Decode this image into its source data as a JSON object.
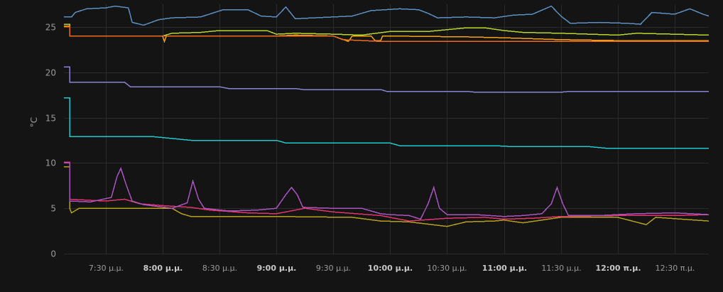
{
  "chart_data": {
    "type": "line",
    "ylabel": "°C",
    "ylim": [
      0,
      27.5
    ],
    "yticks": [
      0,
      5,
      10,
      15,
      20,
      25
    ],
    "x_range": [
      "19:08",
      "24:48"
    ],
    "xticks": [
      {
        "t": "19:30",
        "label": "7:30 μ.μ.",
        "bold": false
      },
      {
        "t": "20:00",
        "label": "8:00 μ.μ.",
        "bold": true
      },
      {
        "t": "20:30",
        "label": "8:30 μ.μ.",
        "bold": false
      },
      {
        "t": "21:00",
        "label": "9:00 μ.μ.",
        "bold": true
      },
      {
        "t": "21:30",
        "label": "9:30 μ.μ.",
        "bold": false
      },
      {
        "t": "22:00",
        "label": "10:00 μ.μ.",
        "bold": true
      },
      {
        "t": "22:30",
        "label": "10:30 μ.μ.",
        "bold": false
      },
      {
        "t": "23:00",
        "label": "11:00 μ.μ.",
        "bold": true
      },
      {
        "t": "23:30",
        "label": "11:30 μ.μ.",
        "bold": false
      },
      {
        "t": "24:00",
        "label": "12:00 π.μ.",
        "bold": true
      },
      {
        "t": "24:30",
        "label": "12:30 π.μ.",
        "bold": false
      }
    ],
    "grid": true,
    "series": [
      {
        "color": "#5b8fc2",
        "points": [
          [
            "19:08",
            26.1
          ],
          [
            "19:12",
            26.1
          ],
          [
            "19:14",
            26.6
          ],
          [
            "19:20",
            27.0
          ],
          [
            "19:30",
            27.1
          ],
          [
            "19:35",
            27.3
          ],
          [
            "19:42",
            27.1
          ],
          [
            "19:44",
            25.5
          ],
          [
            "19:50",
            25.2
          ],
          [
            "19:58",
            25.8
          ],
          [
            "20:05",
            26.0
          ],
          [
            "20:20",
            26.1
          ],
          [
            "20:26",
            26.5
          ],
          [
            "20:32",
            26.9
          ],
          [
            "20:45",
            26.9
          ],
          [
            "20:52",
            26.2
          ],
          [
            "21:00",
            26.1
          ],
          [
            "21:05",
            27.2
          ],
          [
            "21:10",
            25.9
          ],
          [
            "21:20",
            26.0
          ],
          [
            "21:40",
            26.2
          ],
          [
            "21:50",
            26.8
          ],
          [
            "22:05",
            27.0
          ],
          [
            "22:15",
            26.9
          ],
          [
            "22:20",
            26.5
          ],
          [
            "22:25",
            26.0
          ],
          [
            "22:40",
            26.1
          ],
          [
            "22:55",
            26.0
          ],
          [
            "23:05",
            26.3
          ],
          [
            "23:15",
            26.4
          ],
          [
            "23:25",
            27.3
          ],
          [
            "23:30",
            26.2
          ],
          [
            "23:35",
            25.4
          ],
          [
            "23:50",
            25.5
          ],
          [
            "24:05",
            25.4
          ],
          [
            "24:12",
            25.3
          ],
          [
            "24:18",
            26.6
          ],
          [
            "24:30",
            26.4
          ],
          [
            "24:38",
            27.0
          ],
          [
            "24:45",
            26.4
          ],
          [
            "24:48",
            26.2
          ]
        ]
      },
      {
        "color": "#b6d62a",
        "points": [
          [
            "19:08",
            25.3
          ],
          [
            "19:11",
            25.3
          ],
          [
            "19:11",
            24.0
          ],
          [
            "20:00",
            24.0
          ],
          [
            "20:05",
            24.3
          ],
          [
            "20:20",
            24.4
          ],
          [
            "20:30",
            24.6
          ],
          [
            "20:55",
            24.6
          ],
          [
            "21:00",
            24.2
          ],
          [
            "21:10",
            24.3
          ],
          [
            "21:30",
            24.2
          ],
          [
            "21:45",
            24.1
          ],
          [
            "22:00",
            24.5
          ],
          [
            "22:20",
            24.5
          ],
          [
            "22:40",
            24.9
          ],
          [
            "22:50",
            24.9
          ],
          [
            "23:00",
            24.6
          ],
          [
            "23:10",
            24.4
          ],
          [
            "23:30",
            24.3
          ],
          [
            "24:00",
            24.1
          ],
          [
            "24:10",
            24.3
          ],
          [
            "24:48",
            24.1
          ]
        ]
      },
      {
        "color": "#f2a413",
        "points": [
          [
            "19:08",
            25.1
          ],
          [
            "19:11",
            25.1
          ],
          [
            "19:11",
            24.0
          ],
          [
            "20:00",
            24.0
          ],
          [
            "20:01",
            23.4
          ],
          [
            "20:02",
            24.0
          ],
          [
            "21:00",
            24.0
          ],
          [
            "21:10",
            24.1
          ],
          [
            "21:30",
            24.0
          ],
          [
            "21:38",
            23.4
          ],
          [
            "21:40",
            24.0
          ],
          [
            "21:50",
            24.0
          ],
          [
            "21:52",
            23.5
          ],
          [
            "21:55",
            23.5
          ],
          [
            "21:56",
            24.0
          ],
          [
            "22:00",
            24.0
          ],
          [
            "22:40",
            23.9
          ],
          [
            "23:00",
            23.8
          ],
          [
            "23:30",
            23.6
          ],
          [
            "24:00",
            23.5
          ],
          [
            "24:48",
            23.5
          ]
        ]
      },
      {
        "color": "#f06a1c",
        "points": [
          [
            "19:08",
            25.0
          ],
          [
            "19:11",
            25.0
          ],
          [
            "19:11",
            24.0
          ],
          [
            "21:30",
            24.0
          ],
          [
            "21:35",
            23.6
          ],
          [
            "21:55",
            23.4
          ],
          [
            "22:20",
            23.4
          ],
          [
            "23:00",
            23.4
          ],
          [
            "24:48",
            23.4
          ]
        ]
      },
      {
        "color": "#8a83d4",
        "points": [
          [
            "19:08",
            20.6
          ],
          [
            "19:11",
            20.6
          ],
          [
            "19:11",
            18.9
          ],
          [
            "19:40",
            18.9
          ],
          [
            "19:43",
            18.4
          ],
          [
            "20:30",
            18.4
          ],
          [
            "20:35",
            18.2
          ],
          [
            "21:10",
            18.2
          ],
          [
            "21:14",
            18.1
          ],
          [
            "21:55",
            18.1
          ],
          [
            "21:58",
            17.9
          ],
          [
            "22:40",
            17.9
          ],
          [
            "22:45",
            17.8
          ],
          [
            "23:30",
            17.8
          ],
          [
            "23:35",
            17.9
          ],
          [
            "24:48",
            17.9
          ]
        ]
      },
      {
        "color": "#1ec8cd",
        "points": [
          [
            "19:08",
            17.2
          ],
          [
            "19:11",
            17.2
          ],
          [
            "19:11",
            12.9
          ],
          [
            "19:55",
            12.9
          ],
          [
            "20:15",
            12.5
          ],
          [
            "21:00",
            12.5
          ],
          [
            "21:05",
            12.2
          ],
          [
            "22:00",
            12.2
          ],
          [
            "22:05",
            11.9
          ],
          [
            "22:55",
            11.9
          ],
          [
            "23:05",
            11.8
          ],
          [
            "23:45",
            11.8
          ],
          [
            "23:55",
            11.6
          ],
          [
            "24:48",
            11.6
          ]
        ]
      },
      {
        "color": "#b6a01a",
        "points": [
          [
            "19:08",
            9.6
          ],
          [
            "19:11",
            9.6
          ],
          [
            "19:11",
            5.0
          ],
          [
            "19:12",
            4.5
          ],
          [
            "19:16",
            5.0
          ],
          [
            "20:05",
            5.0
          ],
          [
            "20:10",
            4.4
          ],
          [
            "20:15",
            4.1
          ],
          [
            "21:00",
            4.1
          ],
          [
            "21:40",
            4.0
          ],
          [
            "21:55",
            3.6
          ],
          [
            "22:10",
            3.5
          ],
          [
            "22:30",
            3.0
          ],
          [
            "22:40",
            3.5
          ],
          [
            "22:55",
            3.6
          ],
          [
            "23:00",
            3.7
          ],
          [
            "23:10",
            3.4
          ],
          [
            "23:30",
            4.0
          ],
          [
            "24:00",
            4.0
          ],
          [
            "24:15",
            3.2
          ],
          [
            "24:20",
            4.0
          ],
          [
            "24:48",
            3.6
          ]
        ]
      },
      {
        "color": "#e0346a",
        "points": [
          [
            "19:08",
            10.1
          ],
          [
            "19:11",
            10.1
          ],
          [
            "19:11",
            6.0
          ],
          [
            "19:20",
            5.9
          ],
          [
            "19:30",
            5.8
          ],
          [
            "19:40",
            6.0
          ],
          [
            "19:48",
            5.5
          ],
          [
            "20:00",
            5.3
          ],
          [
            "20:15",
            5.1
          ],
          [
            "20:25",
            4.8
          ],
          [
            "20:45",
            4.5
          ],
          [
            "21:00",
            4.4
          ],
          [
            "21:15",
            5.0
          ],
          [
            "21:30",
            4.6
          ],
          [
            "21:55",
            4.2
          ],
          [
            "22:10",
            3.6
          ],
          [
            "22:30",
            3.9
          ],
          [
            "22:50",
            4.0
          ],
          [
            "23:00",
            3.8
          ],
          [
            "23:15",
            3.9
          ],
          [
            "23:30",
            4.1
          ],
          [
            "24:00",
            4.2
          ],
          [
            "24:30",
            4.2
          ],
          [
            "24:48",
            4.3
          ]
        ]
      },
      {
        "color": "#a955c0",
        "points": [
          [
            "19:08",
            10.0
          ],
          [
            "19:11",
            10.0
          ],
          [
            "19:11",
            5.8
          ],
          [
            "19:22",
            5.7
          ],
          [
            "19:33",
            6.2
          ],
          [
            "19:36",
            8.5
          ],
          [
            "19:38",
            9.4
          ],
          [
            "19:41",
            7.5
          ],
          [
            "19:44",
            5.8
          ],
          [
            "19:50",
            5.4
          ],
          [
            "20:05",
            5.0
          ],
          [
            "20:13",
            5.6
          ],
          [
            "20:16",
            8.0
          ],
          [
            "20:19",
            6.0
          ],
          [
            "20:22",
            5.0
          ],
          [
            "20:35",
            4.7
          ],
          [
            "20:50",
            4.8
          ],
          [
            "21:00",
            5.0
          ],
          [
            "21:05",
            6.5
          ],
          [
            "21:08",
            7.3
          ],
          [
            "21:11",
            6.5
          ],
          [
            "21:14",
            5.1
          ],
          [
            "21:30",
            5.0
          ],
          [
            "21:45",
            5.0
          ],
          [
            "21:55",
            4.4
          ],
          [
            "22:00",
            4.3
          ],
          [
            "22:10",
            4.2
          ],
          [
            "22:16",
            3.8
          ],
          [
            "22:20",
            5.5
          ],
          [
            "22:23",
            7.3
          ],
          [
            "22:26",
            5.0
          ],
          [
            "22:30",
            4.3
          ],
          [
            "22:45",
            4.3
          ],
          [
            "23:00",
            4.1
          ],
          [
            "23:10",
            4.2
          ],
          [
            "23:20",
            4.4
          ],
          [
            "23:25",
            5.5
          ],
          [
            "23:28",
            7.3
          ],
          [
            "23:31",
            5.5
          ],
          [
            "23:34",
            4.2
          ],
          [
            "23:50",
            4.2
          ],
          [
            "24:10",
            4.4
          ],
          [
            "24:30",
            4.5
          ],
          [
            "24:48",
            4.3
          ]
        ]
      }
    ]
  }
}
